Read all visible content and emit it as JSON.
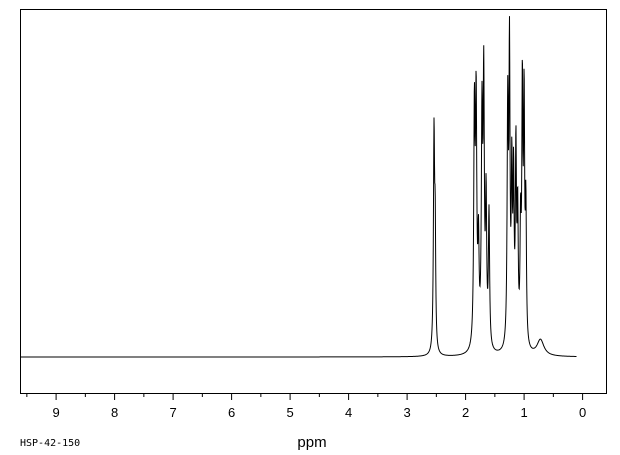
{
  "chart_data": {
    "type": "line",
    "title": "",
    "xlabel": "ppm",
    "ylabel": "",
    "spectrum_code": "HSP-42-150",
    "x_reversed": true,
    "xlim": [
      9.6,
      -0.4
    ],
    "ylim": [
      -0.1,
      1.0
    ],
    "x_ticks": [
      9,
      8,
      7,
      6,
      5,
      4,
      3,
      2,
      1,
      0
    ],
    "x_tick_labels": [
      "9",
      "8",
      "7",
      "6",
      "5",
      "4",
      "3",
      "2",
      "1",
      "0"
    ],
    "minor_tick_step": 0.5,
    "grid": false,
    "colors": {
      "trace": "#000000",
      "frame": "#000000",
      "background": "#ffffff"
    },
    "peaks": [
      {
        "ppm": 2.54,
        "height": 0.68,
        "width": 0.012
      },
      {
        "ppm": 2.52,
        "height": 0.34,
        "width": 0.01
      },
      {
        "ppm": 1.85,
        "height": 0.72,
        "width": 0.013
      },
      {
        "ppm": 1.82,
        "height": 0.74,
        "width": 0.013
      },
      {
        "ppm": 1.78,
        "height": 0.3,
        "width": 0.012
      },
      {
        "ppm": 1.72,
        "height": 0.7,
        "width": 0.013
      },
      {
        "ppm": 1.69,
        "height": 0.8,
        "width": 0.012
      },
      {
        "ppm": 1.65,
        "height": 0.45,
        "width": 0.012
      },
      {
        "ppm": 1.6,
        "height": 0.42,
        "width": 0.012
      },
      {
        "ppm": 1.28,
        "height": 0.74,
        "width": 0.012
      },
      {
        "ppm": 1.25,
        "height": 0.9,
        "width": 0.011
      },
      {
        "ppm": 1.21,
        "height": 0.52,
        "width": 0.011
      },
      {
        "ppm": 1.18,
        "height": 0.5,
        "width": 0.011
      },
      {
        "ppm": 1.14,
        "height": 0.6,
        "width": 0.011
      },
      {
        "ppm": 1.11,
        "height": 0.4,
        "width": 0.011
      },
      {
        "ppm": 1.06,
        "height": 0.35,
        "width": 0.011
      },
      {
        "ppm": 1.03,
        "height": 0.78,
        "width": 0.011
      },
      {
        "ppm": 1.0,
        "height": 0.74,
        "width": 0.011
      },
      {
        "ppm": 0.97,
        "height": 0.42,
        "width": 0.011
      },
      {
        "ppm": 0.72,
        "height": 0.05,
        "width": 0.07
      }
    ]
  }
}
